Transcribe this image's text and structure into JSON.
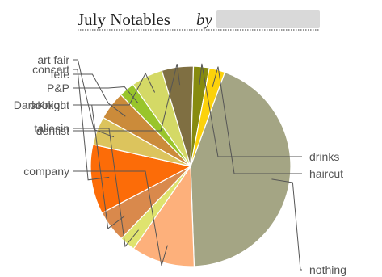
{
  "chart_data": {
    "type": "pie",
    "title": "July Notables",
    "title_by": "by",
    "slices": [
      {
        "label": "nothing",
        "value": 43,
        "color": "#a4a584"
      },
      {
        "label": "company",
        "value": 10,
        "color": "#fdb07b"
      },
      {
        "label": "taliesin",
        "value": 2.5,
        "color": "#dfe36e"
      },
      {
        "label": "cookout",
        "value": 5,
        "color": "#d9894c"
      },
      {
        "label": "concert",
        "value": 11,
        "color": "#fc6c08"
      },
      {
        "label": "art fair",
        "value": 4.5,
        "color": "#dcc45d"
      },
      {
        "label": "fete",
        "value": 4.5,
        "color": "#cb8b3a"
      },
      {
        "label": "P&P",
        "value": 2.5,
        "color": "#99c52b"
      },
      {
        "label": "DarkKnight",
        "value": 5,
        "color": "#d4d966"
      },
      {
        "label": "dentist",
        "value": 5,
        "color": "#7f6f42"
      },
      {
        "label": "drinks",
        "value": 2.5,
        "color": "#878b0f"
      },
      {
        "label": "haircut",
        "value": 2.5,
        "color": "#fcd20b"
      }
    ],
    "legend": "none"
  }
}
